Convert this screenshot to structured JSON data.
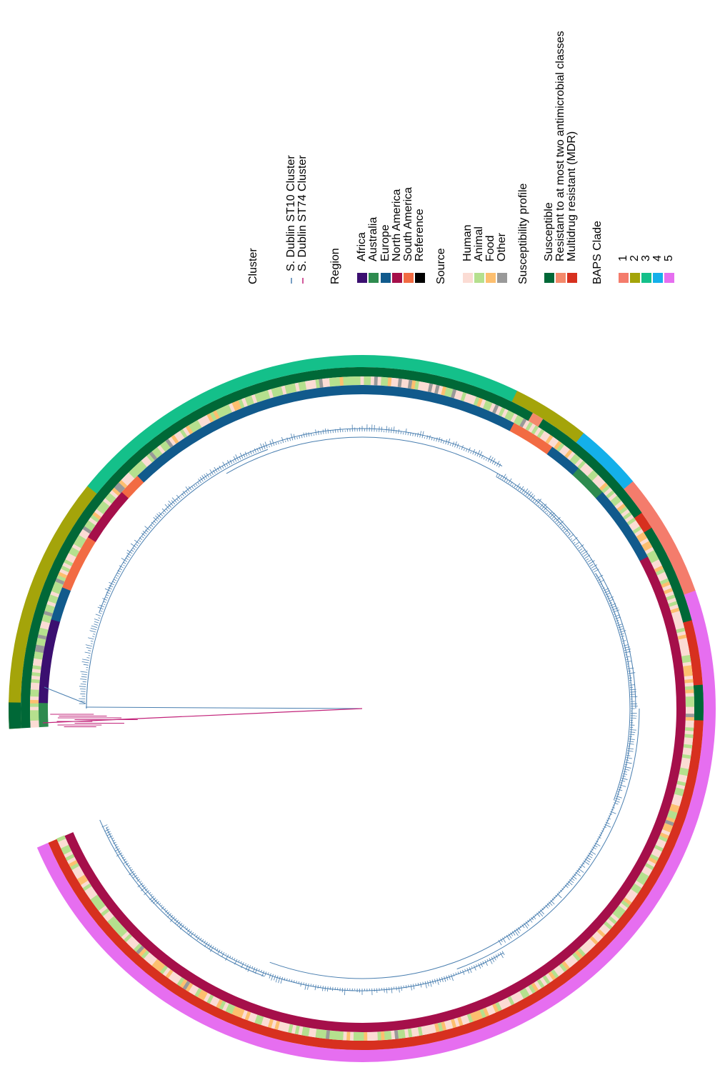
{
  "legend": [
    {
      "title": "Cluster",
      "kind": "line",
      "items": [
        {
          "label": "S. Dublin ST10 Cluster",
          "color": "#4a7fb0"
        },
        {
          "label": "S. Dublin ST74 Cluster",
          "color": "#c2237a"
        }
      ]
    },
    {
      "title": "Region",
      "kind": "box",
      "items": [
        {
          "label": "Africa",
          "color": "#3b0f70"
        },
        {
          "label": "Australia",
          "color": "#2e8b4f"
        },
        {
          "label": "Europe",
          "color": "#115a8c"
        },
        {
          "label": "North America",
          "color": "#a50f4a"
        },
        {
          "label": "South America",
          "color": "#f26b43"
        },
        {
          "label": "Reference",
          "color": "#000000"
        }
      ]
    },
    {
      "title": "Source",
      "kind": "box",
      "items": [
        {
          "label": "Human",
          "color": "#fbdcd4"
        },
        {
          "label": "Animal",
          "color": "#b5e08e"
        },
        {
          "label": "Food",
          "color": "#fdbf6f"
        },
        {
          "label": "Other",
          "color": "#999999"
        }
      ]
    },
    {
      "title": "Susceptibility profile",
      "kind": "box",
      "items": [
        {
          "label": "Susceptible",
          "color": "#006837"
        },
        {
          "label": "Resistant to at most two antimicrobial classes",
          "color": "#f4896b"
        },
        {
          "label": "Multidrug resistant (MDR)",
          "color": "#d7301f"
        }
      ]
    },
    {
      "title": "BAPS Clade",
      "kind": "box",
      "items": [
        {
          "label": "1",
          "color": "#f47c6c"
        },
        {
          "label": "2",
          "color": "#a4a40a"
        },
        {
          "label": "3",
          "color": "#14c08a"
        },
        {
          "label": "4",
          "color": "#14b0ea"
        },
        {
          "label": "5",
          "color": "#e66ef0"
        }
      ]
    }
  ]
}
